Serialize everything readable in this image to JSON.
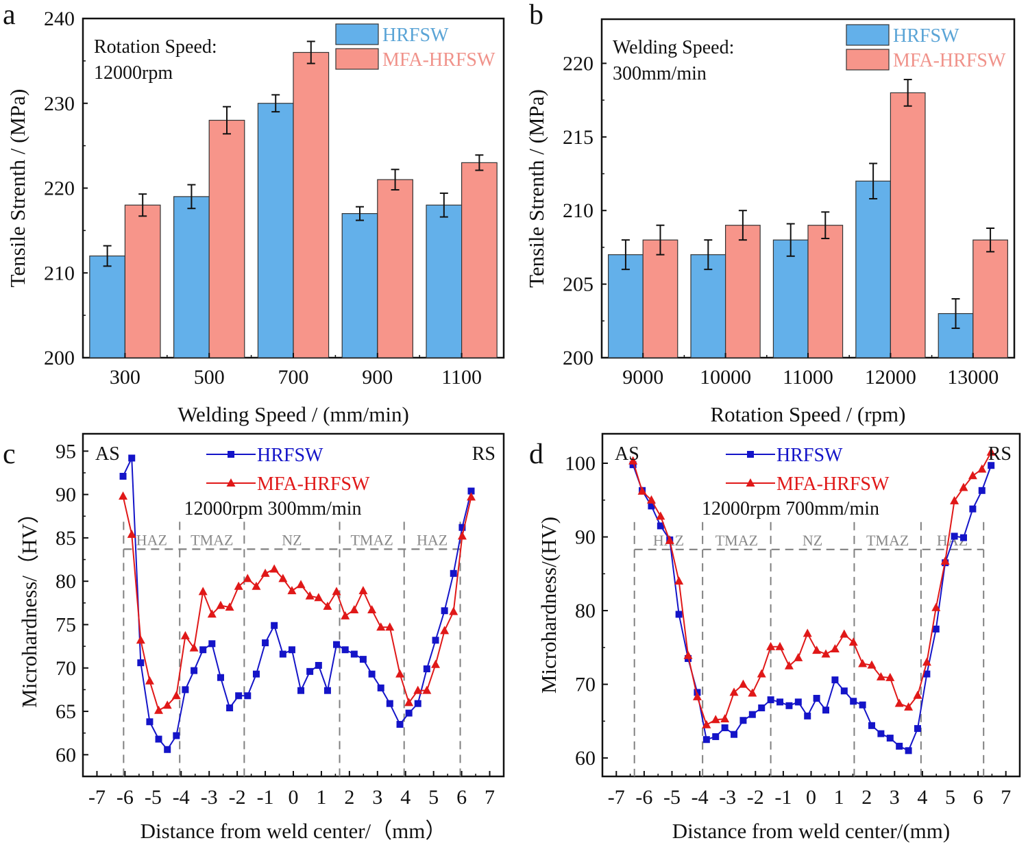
{
  "colors": {
    "bar_blue": "#63b0ea",
    "bar_red": "#f7958a",
    "legend_blue_text": "#5aa4d6",
    "legend_red_text": "#f0928a",
    "line_blue": "#1414c8",
    "line_red": "#e01818",
    "zone_gray": "#808080"
  },
  "chart_data": [
    {
      "panel": "a",
      "type": "bar",
      "title": "",
      "annotation": [
        "Rotation Speed:",
        "12000rpm"
      ],
      "xlabel": "Welding Speed / (mm/min)",
      "ylabel": "Tensile Strenth / (MPa)",
      "categories": [
        "300",
        "500",
        "700",
        "900",
        "1100"
      ],
      "ylim": [
        200,
        240
      ],
      "yticks": [
        200,
        210,
        220,
        230,
        240
      ],
      "legend_position": "top-right",
      "series": [
        {
          "name": "HRFSW",
          "values": [
            212,
            219,
            230,
            217,
            218
          ],
          "errors": [
            1.2,
            1.4,
            1.0,
            0.8,
            1.4
          ]
        },
        {
          "name": "MFA-HRFSW",
          "values": [
            218,
            228,
            236,
            221,
            223
          ],
          "errors": [
            1.3,
            1.6,
            1.3,
            1.2,
            0.9
          ]
        }
      ]
    },
    {
      "panel": "b",
      "type": "bar",
      "title": "",
      "annotation": [
        "Welding Speed:",
        "300mm/min"
      ],
      "xlabel": "Rotation Speed / (rpm)",
      "ylabel": "Tensile Strenth / (MPa)",
      "categories": [
        "9000",
        "10000",
        "11000",
        "12000",
        "13000"
      ],
      "ylim": [
        200,
        223
      ],
      "yticks": [
        200,
        205,
        210,
        215,
        220
      ],
      "legend_position": "top-right",
      "series": [
        {
          "name": "HRFSW",
          "values": [
            207,
            207,
            208,
            212,
            203
          ],
          "errors": [
            1.0,
            1.0,
            1.1,
            1.2,
            1.0
          ]
        },
        {
          "name": "MFA-HRFSW",
          "values": [
            208,
            209,
            209,
            218,
            208
          ],
          "errors": [
            1.0,
            1.0,
            0.9,
            0.9,
            0.8
          ]
        }
      ]
    },
    {
      "panel": "c",
      "type": "line",
      "title": "",
      "annotation": [
        "12000rpm  300mm/min"
      ],
      "side_labels": [
        "AS",
        "RS"
      ],
      "zones": [
        "HAZ",
        "TMAZ",
        "NZ",
        "TMAZ",
        "HAZ"
      ],
      "zone_boundaries": [
        -6.05,
        -4.05,
        -1.75,
        1.65,
        3.95,
        5.95
      ],
      "zone_line_level": 83.7,
      "xlabel": "Distance from weld center/（mm）",
      "ylabel": "Microhardness/（HV）",
      "xlim": [
        -7.5,
        7.5
      ],
      "ylim": [
        57.5,
        97
      ],
      "xticks": [
        -7,
        -6,
        -5,
        -4,
        -3,
        -2,
        -1,
        0,
        1,
        2,
        3,
        4,
        5,
        6,
        7
      ],
      "yticks": [
        60,
        65,
        70,
        75,
        80,
        85,
        90,
        95
      ],
      "legend_position": "top-center",
      "series": [
        {
          "name": "HRFSW",
          "marker": "square",
          "x": [
            -6.07,
            -5.76,
            -5.44,
            -5.12,
            -4.8,
            -4.49,
            -4.17,
            -3.85,
            -3.54,
            -3.22,
            -2.9,
            -2.59,
            -2.27,
            -1.95,
            -1.63,
            -1.32,
            -1.0,
            -0.68,
            -0.37,
            -0.05,
            0.27,
            0.59,
            0.9,
            1.22,
            1.54,
            1.85,
            2.17,
            2.49,
            2.8,
            3.12,
            3.44,
            3.8,
            4.12,
            4.44,
            4.76,
            5.07,
            5.39,
            5.71,
            6.02,
            6.34
          ],
          "y": [
            92.1,
            94.2,
            70.6,
            63.8,
            61.8,
            60.6,
            62.2,
            67.5,
            69.7,
            72.1,
            72.8,
            68.9,
            65.4,
            66.8,
            66.8,
            69.3,
            72.9,
            74.9,
            71.6,
            72.1,
            67.4,
            69.6,
            70.3,
            67.4,
            72.7,
            72.1,
            71.6,
            71.0,
            69.3,
            67.7,
            65.9,
            63.5,
            64.8,
            65.9,
            69.9,
            73.2,
            76.6,
            80.9,
            86.2,
            90.4
          ]
        },
        {
          "name": "MFA-HRFSW",
          "marker": "triangle",
          "x": [
            -6.07,
            -5.76,
            -5.44,
            -5.12,
            -4.8,
            -4.49,
            -4.17,
            -3.85,
            -3.54,
            -3.22,
            -2.9,
            -2.59,
            -2.27,
            -1.95,
            -1.63,
            -1.32,
            -1.0,
            -0.68,
            -0.37,
            -0.05,
            0.27,
            0.59,
            0.9,
            1.22,
            1.54,
            1.85,
            2.17,
            2.49,
            2.8,
            3.12,
            3.44,
            3.8,
            4.12,
            4.44,
            4.76,
            5.07,
            5.39,
            5.71,
            6.02,
            6.34
          ],
          "y": [
            89.8,
            85.4,
            73.2,
            68.5,
            65.1,
            65.7,
            66.8,
            73.7,
            72.3,
            78.8,
            76.2,
            77.2,
            77.0,
            79.4,
            80.3,
            79.4,
            80.9,
            81.4,
            80.3,
            78.9,
            79.6,
            78.3,
            78.1,
            77.1,
            78.8,
            76.0,
            76.7,
            78.9,
            76.7,
            74.7,
            74.7,
            69.3,
            66.0,
            67.4,
            67.4,
            70.4,
            74.3,
            76.5,
            85.2,
            89.7
          ]
        }
      ]
    },
    {
      "panel": "d",
      "type": "line",
      "title": "",
      "annotation": [
        "12000rpm  700mm/min"
      ],
      "side_labels": [
        "AS",
        "RS"
      ],
      "zones": [
        "HAZ",
        "TMAZ",
        "NZ",
        "TMAZ",
        "HAZ"
      ],
      "zone_boundaries": [
        -6.35,
        -3.9,
        -1.45,
        1.55,
        3.95,
        6.2
      ],
      "zone_line_level": 88.3,
      "xlabel": "Distance from weld center/(mm)",
      "ylabel": "Microhardness/(HV)",
      "xlim": [
        -7.5,
        7.5
      ],
      "ylim": [
        57.5,
        104
      ],
      "xticks": [
        -7,
        -6,
        -5,
        -4,
        -3,
        -2,
        -1,
        0,
        1,
        2,
        3,
        4,
        5,
        6,
        7
      ],
      "yticks": [
        60,
        70,
        80,
        90,
        100
      ],
      "legend_position": "top-center",
      "series": [
        {
          "name": "HRFSW",
          "marker": "square",
          "x": [
            -6.4,
            -6.07,
            -5.74,
            -5.41,
            -5.08,
            -4.75,
            -4.42,
            -4.09,
            -3.76,
            -3.43,
            -3.1,
            -2.77,
            -2.44,
            -2.11,
            -1.78,
            -1.45,
            -1.12,
            -0.79,
            -0.46,
            -0.13,
            0.2,
            0.53,
            0.86,
            1.19,
            1.52,
            1.85,
            2.18,
            2.51,
            2.84,
            3.17,
            3.5,
            3.83,
            4.16,
            4.49,
            4.82,
            5.15,
            5.48,
            5.81,
            6.14,
            6.47
          ],
          "y": [
            99.8,
            96.3,
            94.2,
            91.5,
            89.6,
            79.5,
            73.5,
            68.9,
            62.5,
            62.9,
            64.1,
            63.2,
            65.1,
            65.9,
            66.8,
            67.9,
            67.6,
            67.1,
            67.6,
            65.7,
            68.1,
            66.5,
            70.6,
            69.1,
            67.7,
            67.2,
            64.4,
            63.3,
            62.7,
            61.6,
            61.0,
            64.0,
            71.4,
            77.5,
            86.5,
            90.1,
            89.9,
            93.8,
            96.3,
            99.7
          ]
        },
        {
          "name": "MFA-HRFSW",
          "marker": "triangle",
          "x": [
            -6.4,
            -6.07,
            -5.74,
            -5.41,
            -5.08,
            -4.75,
            -4.42,
            -4.09,
            -3.76,
            -3.43,
            -3.1,
            -2.77,
            -2.44,
            -2.11,
            -1.78,
            -1.45,
            -1.12,
            -0.79,
            -0.46,
            -0.13,
            0.2,
            0.53,
            0.86,
            1.19,
            1.52,
            1.85,
            2.18,
            2.51,
            2.84,
            3.17,
            3.5,
            3.83,
            4.16,
            4.49,
            4.82,
            5.15,
            5.48,
            5.81,
            6.14,
            6.47
          ],
          "y": [
            100.3,
            96.2,
            95.0,
            92.8,
            89.5,
            84.0,
            73.9,
            68.3,
            64.5,
            65.2,
            65.3,
            68.9,
            70.0,
            68.8,
            71.4,
            75.1,
            75.1,
            72.5,
            73.6,
            76.9,
            74.6,
            74.1,
            74.8,
            76.8,
            75.7,
            72.8,
            72.6,
            71.0,
            70.9,
            67.4,
            66.9,
            68.5,
            73.0,
            80.4,
            86.7,
            94.9,
            96.7,
            98.3,
            99.2,
            101.5
          ]
        }
      ]
    }
  ]
}
